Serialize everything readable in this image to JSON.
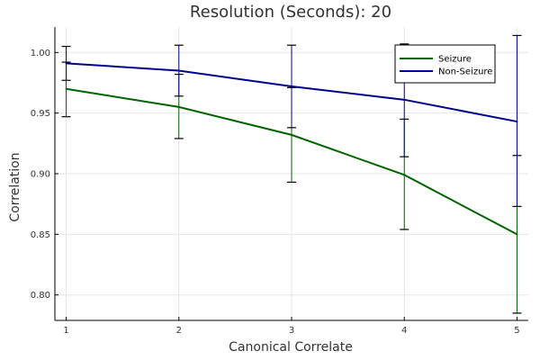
{
  "chart_data": {
    "type": "line",
    "title": "Resolution (Seconds): 20",
    "xlabel": "Canonical Correlate",
    "ylabel": "Correlation",
    "x": [
      1,
      2,
      3,
      4,
      5
    ],
    "xlim": [
      0.9,
      5.1
    ],
    "ylim": [
      0.779,
      1.021
    ],
    "xticks": [
      "1",
      "2",
      "3",
      "4",
      "5"
    ],
    "yticks": [
      "0.80",
      "0.85",
      "0.90",
      "0.95",
      "1.00"
    ],
    "grid": true,
    "legend_position": "top-right",
    "series": [
      {
        "name": "Seizure",
        "color": "#006400",
        "values": [
          0.97,
          0.955,
          0.932,
          0.899,
          0.85
        ],
        "error_low": [
          0.947,
          0.929,
          0.893,
          0.854,
          0.785
        ],
        "error_high": [
          0.992,
          0.982,
          0.971,
          0.945,
          0.915
        ]
      },
      {
        "name": "Non-Seizure",
        "color": "#00008b",
        "values": [
          0.991,
          0.985,
          0.972,
          0.961,
          0.943
        ],
        "error_low": [
          0.977,
          0.964,
          0.938,
          0.914,
          0.873
        ],
        "error_high": [
          1.005,
          1.006,
          1.006,
          1.007,
          1.014
        ]
      }
    ]
  }
}
